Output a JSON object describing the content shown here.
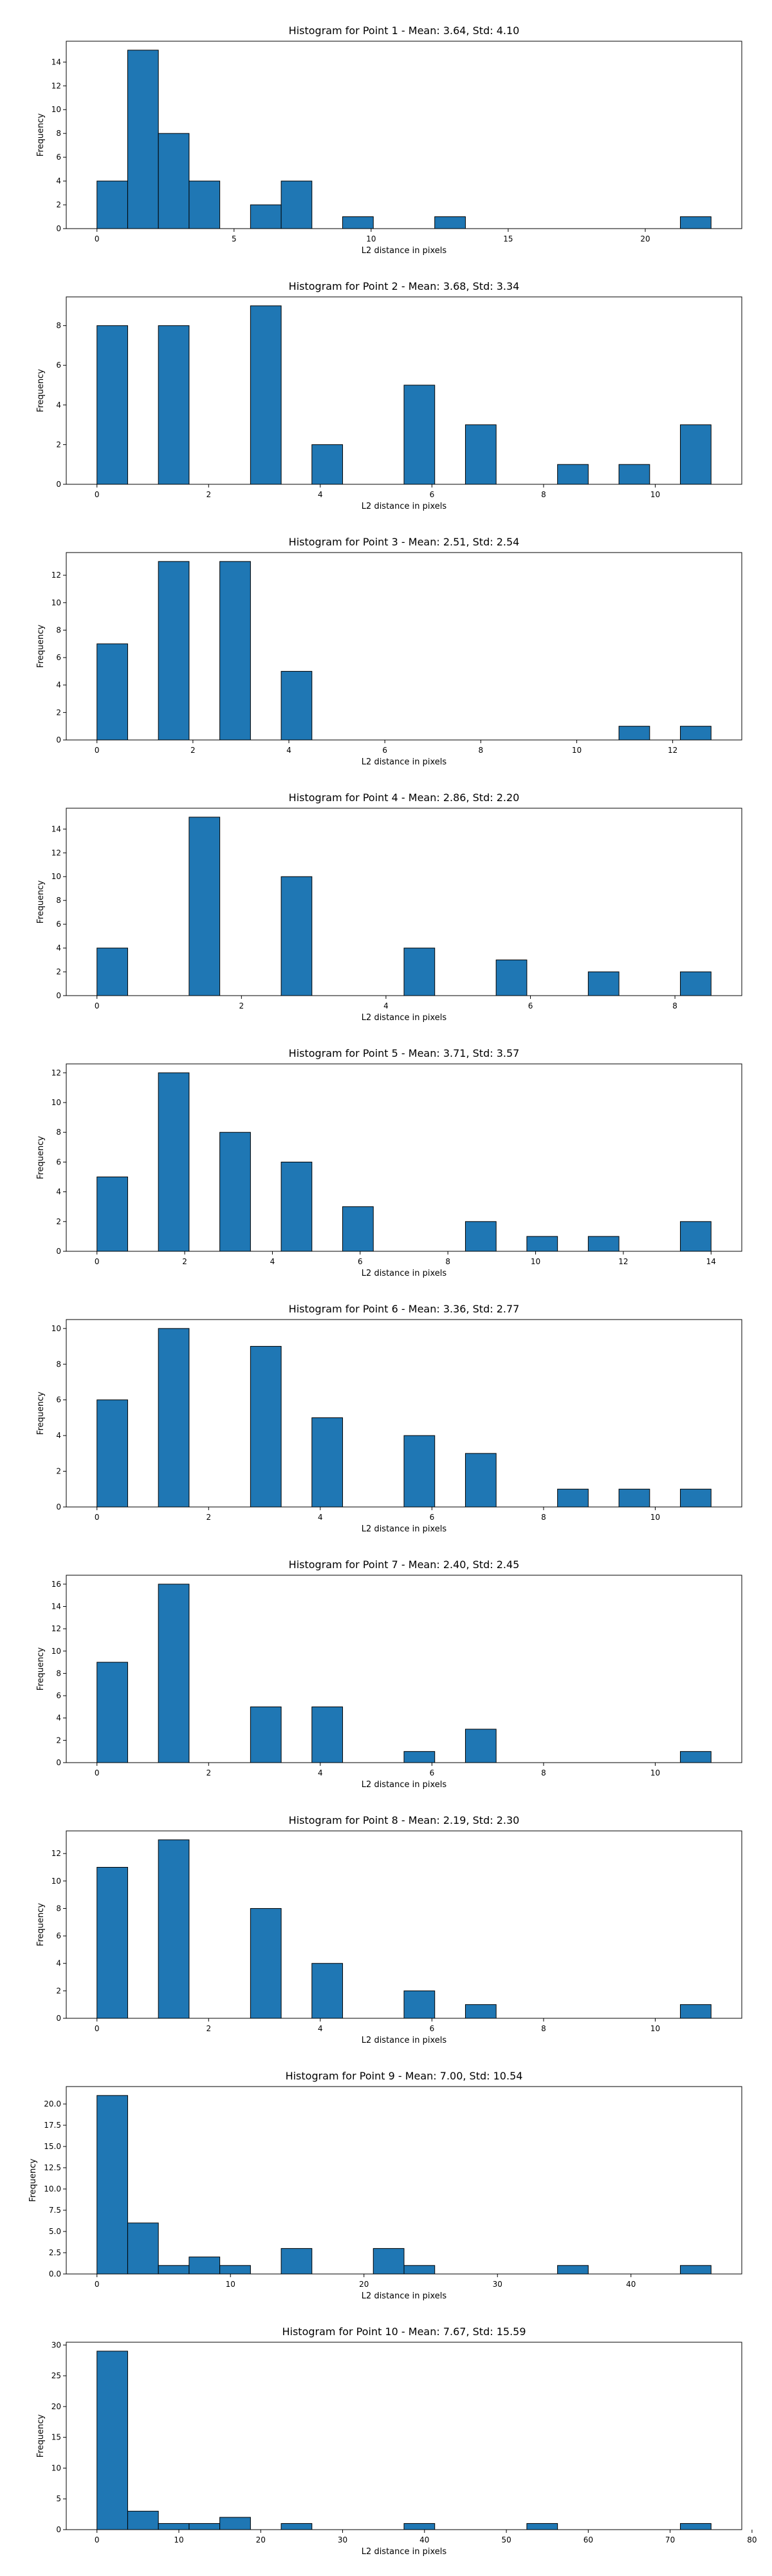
{
  "chart_data": [
    {
      "type": "bar",
      "title": "Histogram for Point 1 - Mean: 3.64, Std: 4.10",
      "xlabel": "L2 distance in pixels",
      "ylabel": "Frequency",
      "bins": [
        [
          0.0,
          1.12,
          4
        ],
        [
          1.12,
          2.24,
          15
        ],
        [
          2.24,
          3.36,
          8
        ],
        [
          3.36,
          4.48,
          4
        ],
        [
          4.48,
          5.6,
          0
        ],
        [
          5.6,
          6.72,
          2
        ],
        [
          6.72,
          7.84,
          4
        ],
        [
          7.84,
          8.96,
          0
        ],
        [
          8.96,
          10.08,
          1
        ],
        [
          10.08,
          11.2,
          0
        ],
        [
          11.2,
          12.32,
          0
        ],
        [
          12.32,
          13.44,
          1
        ],
        [
          13.44,
          14.56,
          0
        ],
        [
          14.56,
          15.68,
          0
        ],
        [
          15.68,
          16.8,
          0
        ],
        [
          16.8,
          17.92,
          0
        ],
        [
          17.92,
          19.04,
          0
        ],
        [
          19.04,
          20.16,
          0
        ],
        [
          20.16,
          21.28,
          0
        ],
        [
          21.28,
          22.4,
          1
        ]
      ],
      "xlim": [
        -1.12,
        23.52
      ],
      "ylim": [
        0,
        15.75
      ],
      "xticks": [
        0,
        5,
        10,
        15,
        20
      ],
      "yticks": [
        0,
        2,
        4,
        6,
        8,
        10,
        12,
        14
      ],
      "bar_color": "#1f77b4",
      "edge_color": "#000000",
      "grid": false
    },
    {
      "type": "bar",
      "title": "Histogram for Point 2 - Mean: 3.68, Std: 3.34",
      "xlabel": "L2 distance in pixels",
      "ylabel": "Frequency",
      "bins": [
        [
          0.0,
          0.55,
          8
        ],
        [
          0.55,
          1.1,
          0
        ],
        [
          1.1,
          1.65,
          8
        ],
        [
          1.65,
          2.2,
          0
        ],
        [
          2.2,
          2.75,
          0
        ],
        [
          2.75,
          3.3,
          9
        ],
        [
          3.3,
          3.85,
          0
        ],
        [
          3.85,
          4.4,
          2
        ],
        [
          4.4,
          4.95,
          0
        ],
        [
          4.95,
          5.5,
          0
        ],
        [
          5.5,
          6.05,
          5
        ],
        [
          6.05,
          6.6,
          0
        ],
        [
          6.6,
          7.15,
          3
        ],
        [
          7.15,
          7.7,
          0
        ],
        [
          7.7,
          8.25,
          0
        ],
        [
          8.25,
          8.8,
          1
        ],
        [
          8.8,
          9.35,
          0
        ],
        [
          9.35,
          9.9,
          1
        ],
        [
          9.9,
          10.45,
          0
        ],
        [
          10.45,
          11.0,
          3
        ]
      ],
      "xlim": [
        -0.55,
        11.55
      ],
      "ylim": [
        0,
        9.45
      ],
      "xticks": [
        0,
        2,
        4,
        6,
        8,
        10
      ],
      "yticks": [
        0,
        2,
        4,
        6,
        8
      ],
      "bar_color": "#1f77b4",
      "edge_color": "#000000",
      "grid": false
    },
    {
      "type": "bar",
      "title": "Histogram for Point 3 - Mean: 2.51, Std: 2.54",
      "xlabel": "L2 distance in pixels",
      "ylabel": "Frequency",
      "bins": [
        [
          0.0,
          0.64,
          7
        ],
        [
          0.64,
          1.28,
          0
        ],
        [
          1.28,
          1.92,
          13
        ],
        [
          1.92,
          2.56,
          0
        ],
        [
          2.56,
          3.2,
          13
        ],
        [
          3.2,
          3.84,
          0
        ],
        [
          3.84,
          4.48,
          5
        ],
        [
          4.48,
          5.12,
          0
        ],
        [
          5.12,
          5.76,
          0
        ],
        [
          5.76,
          6.4,
          0
        ],
        [
          6.4,
          7.04,
          0
        ],
        [
          7.04,
          7.68,
          0
        ],
        [
          7.68,
          8.32,
          0
        ],
        [
          8.32,
          8.96,
          0
        ],
        [
          8.96,
          9.6,
          0
        ],
        [
          9.6,
          10.24,
          0
        ],
        [
          10.24,
          10.88,
          0
        ],
        [
          10.88,
          11.52,
          1
        ],
        [
          11.52,
          12.16,
          0
        ],
        [
          12.16,
          12.8,
          1
        ]
      ],
      "xlim": [
        -0.64,
        13.44
      ],
      "ylim": [
        0,
        13.65
      ],
      "xticks": [
        0,
        2,
        4,
        6,
        8,
        10,
        12
      ],
      "yticks": [
        0,
        2,
        4,
        6,
        8,
        10,
        12
      ],
      "bar_color": "#1f77b4",
      "edge_color": "#000000",
      "grid": false
    },
    {
      "type": "bar",
      "title": "Histogram for Point 4 - Mean: 2.86, Std: 2.20",
      "xlabel": "L2 distance in pixels",
      "ylabel": "Frequency",
      "bins": [
        [
          0.0,
          0.425,
          4
        ],
        [
          0.425,
          0.85,
          0
        ],
        [
          0.85,
          1.275,
          0
        ],
        [
          1.275,
          1.7,
          15
        ],
        [
          1.7,
          2.125,
          0
        ],
        [
          2.125,
          2.55,
          0
        ],
        [
          2.55,
          2.975,
          10
        ],
        [
          2.975,
          3.4,
          0
        ],
        [
          3.4,
          3.825,
          0
        ],
        [
          3.825,
          4.25,
          0
        ],
        [
          4.25,
          4.675,
          4
        ],
        [
          4.675,
          5.1,
          0
        ],
        [
          5.1,
          5.525,
          0
        ],
        [
          5.525,
          5.95,
          3
        ],
        [
          5.95,
          6.375,
          0
        ],
        [
          6.375,
          6.8,
          0
        ],
        [
          6.8,
          7.225,
          2
        ],
        [
          7.225,
          7.65,
          0
        ],
        [
          7.65,
          8.075,
          0
        ],
        [
          8.075,
          8.5,
          2
        ]
      ],
      "xlim": [
        -0.425,
        8.925
      ],
      "ylim": [
        0,
        15.75
      ],
      "xticks": [
        0,
        2,
        4,
        6,
        8
      ],
      "yticks": [
        0,
        2,
        4,
        6,
        8,
        10,
        12,
        14
      ],
      "bar_color": "#1f77b4",
      "edge_color": "#000000",
      "grid": false
    },
    {
      "type": "bar",
      "title": "Histogram for Point 5 - Mean: 3.71, Std: 3.57",
      "xlabel": "L2 distance in pixels",
      "ylabel": "Frequency",
      "bins": [
        [
          0.0,
          0.7,
          5
        ],
        [
          0.7,
          1.4,
          0
        ],
        [
          1.4,
          2.1,
          12
        ],
        [
          2.1,
          2.8,
          0
        ],
        [
          2.8,
          3.5,
          8
        ],
        [
          3.5,
          4.2,
          0
        ],
        [
          4.2,
          4.9,
          6
        ],
        [
          4.9,
          5.6,
          0
        ],
        [
          5.6,
          6.3,
          3
        ],
        [
          6.3,
          7.0,
          0
        ],
        [
          7.0,
          7.7,
          0
        ],
        [
          7.7,
          8.4,
          0
        ],
        [
          8.4,
          9.1,
          2
        ],
        [
          9.1,
          9.8,
          0
        ],
        [
          9.8,
          10.5,
          1
        ],
        [
          10.5,
          11.2,
          0
        ],
        [
          11.2,
          11.9,
          1
        ],
        [
          11.9,
          12.6,
          0
        ],
        [
          12.6,
          13.3,
          0
        ],
        [
          13.3,
          14.0,
          2
        ]
      ],
      "xlim": [
        -0.7,
        14.7
      ],
      "ylim": [
        0,
        12.6
      ],
      "xticks": [
        0,
        2,
        4,
        6,
        8,
        10,
        12,
        14
      ],
      "yticks": [
        0,
        2,
        4,
        6,
        8,
        10,
        12
      ],
      "bar_color": "#1f77b4",
      "edge_color": "#000000",
      "grid": false
    },
    {
      "type": "bar",
      "title": "Histogram for Point 6 - Mean: 3.36, Std: 2.77",
      "xlabel": "L2 distance in pixels",
      "ylabel": "Frequency",
      "bins": [
        [
          0.0,
          0.55,
          6
        ],
        [
          0.55,
          1.1,
          0
        ],
        [
          1.1,
          1.65,
          10
        ],
        [
          1.65,
          2.2,
          0
        ],
        [
          2.2,
          2.75,
          0
        ],
        [
          2.75,
          3.3,
          9
        ],
        [
          3.3,
          3.85,
          0
        ],
        [
          3.85,
          4.4,
          5
        ],
        [
          4.4,
          4.95,
          0
        ],
        [
          4.95,
          5.5,
          0
        ],
        [
          5.5,
          6.05,
          4
        ],
        [
          6.05,
          6.6,
          0
        ],
        [
          6.6,
          7.15,
          3
        ],
        [
          7.15,
          7.7,
          0
        ],
        [
          7.7,
          8.25,
          0
        ],
        [
          8.25,
          8.8,
          1
        ],
        [
          8.8,
          9.35,
          0
        ],
        [
          9.35,
          9.9,
          1
        ],
        [
          9.9,
          10.45,
          0
        ],
        [
          10.45,
          11.0,
          1
        ]
      ],
      "xlim": [
        -0.55,
        11.55
      ],
      "ylim": [
        0,
        10.5
      ],
      "xticks": [
        0,
        2,
        4,
        6,
        8,
        10
      ],
      "yticks": [
        0,
        2,
        4,
        6,
        8,
        10
      ],
      "bar_color": "#1f77b4",
      "edge_color": "#000000",
      "grid": false
    },
    {
      "type": "bar",
      "title": "Histogram for Point 7 - Mean: 2.40, Std: 2.45",
      "xlabel": "L2 distance in pixels",
      "ylabel": "Frequency",
      "bins": [
        [
          0.0,
          0.55,
          9
        ],
        [
          0.55,
          1.1,
          0
        ],
        [
          1.1,
          1.65,
          16
        ],
        [
          1.65,
          2.2,
          0
        ],
        [
          2.2,
          2.75,
          0
        ],
        [
          2.75,
          3.3,
          5
        ],
        [
          3.3,
          3.85,
          0
        ],
        [
          3.85,
          4.4,
          5
        ],
        [
          4.4,
          4.95,
          0
        ],
        [
          4.95,
          5.5,
          0
        ],
        [
          5.5,
          6.05,
          1
        ],
        [
          6.05,
          6.6,
          0
        ],
        [
          6.6,
          7.15,
          3
        ],
        [
          7.15,
          7.7,
          0
        ],
        [
          7.7,
          8.25,
          0
        ],
        [
          8.25,
          8.8,
          0
        ],
        [
          8.8,
          9.35,
          0
        ],
        [
          9.35,
          9.9,
          0
        ],
        [
          9.9,
          10.45,
          0
        ],
        [
          10.45,
          11.0,
          1
        ]
      ],
      "xlim": [
        -0.55,
        11.55
      ],
      "ylim": [
        0,
        16.8
      ],
      "xticks": [
        0,
        2,
        4,
        6,
        8,
        10
      ],
      "yticks": [
        0,
        2,
        4,
        6,
        8,
        10,
        12,
        14,
        16
      ],
      "bar_color": "#1f77b4",
      "edge_color": "#000000",
      "grid": false
    },
    {
      "type": "bar",
      "title": "Histogram for Point 8 - Mean: 2.19, Std: 2.30",
      "xlabel": "L2 distance in pixels",
      "ylabel": "Frequency",
      "bins": [
        [
          0.0,
          0.55,
          11
        ],
        [
          0.55,
          1.1,
          0
        ],
        [
          1.1,
          1.65,
          13
        ],
        [
          1.65,
          2.2,
          0
        ],
        [
          2.2,
          2.75,
          0
        ],
        [
          2.75,
          3.3,
          8
        ],
        [
          3.3,
          3.85,
          0
        ],
        [
          3.85,
          4.4,
          4
        ],
        [
          4.4,
          4.95,
          0
        ],
        [
          4.95,
          5.5,
          0
        ],
        [
          5.5,
          6.05,
          2
        ],
        [
          6.05,
          6.6,
          0
        ],
        [
          6.6,
          7.15,
          1
        ],
        [
          7.15,
          7.7,
          0
        ],
        [
          7.7,
          8.25,
          0
        ],
        [
          8.25,
          8.8,
          0
        ],
        [
          8.8,
          9.35,
          0
        ],
        [
          9.35,
          9.9,
          0
        ],
        [
          9.9,
          10.45,
          0
        ],
        [
          10.45,
          11.0,
          1
        ]
      ],
      "xlim": [
        -0.55,
        11.55
      ],
      "ylim": [
        0,
        13.65
      ],
      "xticks": [
        0,
        2,
        4,
        6,
        8,
        10
      ],
      "yticks": [
        0,
        2,
        4,
        6,
        8,
        10,
        12
      ],
      "bar_color": "#1f77b4",
      "edge_color": "#000000",
      "grid": false
    },
    {
      "type": "bar",
      "title": "Histogram for Point 9 - Mean: 7.00, Std: 10.54",
      "xlabel": "L2 distance in pixels",
      "ylabel": "Frequency",
      "bins": [
        [
          0.0,
          2.3,
          21
        ],
        [
          2.3,
          4.6,
          6
        ],
        [
          4.6,
          6.9,
          1
        ],
        [
          6.9,
          9.2,
          2
        ],
        [
          9.2,
          11.5,
          1
        ],
        [
          11.5,
          13.8,
          0
        ],
        [
          13.8,
          16.1,
          3
        ],
        [
          16.1,
          18.4,
          0
        ],
        [
          18.4,
          20.7,
          0
        ],
        [
          20.7,
          23.0,
          3
        ],
        [
          23.0,
          25.3,
          1
        ],
        [
          25.3,
          27.6,
          0
        ],
        [
          27.6,
          29.9,
          0
        ],
        [
          29.9,
          32.2,
          0
        ],
        [
          32.2,
          34.5,
          0
        ],
        [
          34.5,
          36.8,
          1
        ],
        [
          36.8,
          39.1,
          0
        ],
        [
          39.1,
          41.4,
          0
        ],
        [
          41.4,
          43.7,
          0
        ],
        [
          43.7,
          46.0,
          1
        ]
      ],
      "xlim": [
        -2.3,
        48.3
      ],
      "ylim": [
        0,
        22.05
      ],
      "xticks": [
        0,
        10,
        20,
        30,
        40
      ],
      "yticks": [
        0,
        2.5,
        5,
        7.5,
        10,
        12.5,
        15,
        17.5,
        20
      ],
      "ytick_labels": [
        "0.0",
        "2.5",
        "5.0",
        "7.5",
        "10.0",
        "12.5",
        "15.0",
        "17.5",
        "20.0"
      ],
      "bar_color": "#1f77b4",
      "edge_color": "#000000",
      "grid": false
    },
    {
      "type": "bar",
      "title": "Histogram for Point 10 - Mean: 7.67, Std: 15.59",
      "xlabel": "L2 distance in pixels",
      "ylabel": "Frequency",
      "bins": [
        [
          0.0,
          3.75,
          29
        ],
        [
          3.75,
          7.5,
          3
        ],
        [
          7.5,
          11.25,
          1
        ],
        [
          11.25,
          15.0,
          1
        ],
        [
          15.0,
          18.75,
          2
        ],
        [
          18.75,
          22.5,
          0
        ],
        [
          22.5,
          26.25,
          1
        ],
        [
          26.25,
          30.0,
          0
        ],
        [
          30.0,
          33.75,
          0
        ],
        [
          33.75,
          37.5,
          0
        ],
        [
          37.5,
          41.25,
          1
        ],
        [
          41.25,
          45.0,
          0
        ],
        [
          45.0,
          48.75,
          0
        ],
        [
          48.75,
          52.5,
          0
        ],
        [
          52.5,
          56.25,
          1
        ],
        [
          56.25,
          60.0,
          0
        ],
        [
          60.0,
          63.75,
          0
        ],
        [
          63.75,
          67.5,
          0
        ],
        [
          67.5,
          71.25,
          0
        ],
        [
          71.25,
          75.0,
          1
        ]
      ],
      "xlim": [
        -3.75,
        78.75
      ],
      "ylim": [
        0,
        30.45
      ],
      "xticks": [
        0,
        10,
        20,
        30,
        40,
        50,
        60,
        70,
        80
      ],
      "yticks": [
        0,
        5,
        10,
        15,
        20,
        25,
        30
      ],
      "bar_color": "#1f77b4",
      "edge_color": "#000000",
      "grid": false
    }
  ]
}
